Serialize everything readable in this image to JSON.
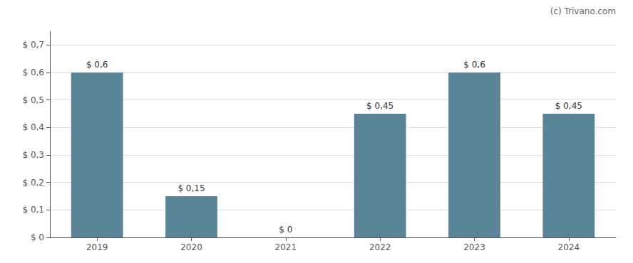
{
  "chart_data": {
    "type": "bar",
    "annotations": [
      "(c) Trivano.com"
    ],
    "categories": [
      "2019",
      "2020",
      "2021",
      "2022",
      "2023",
      "2024"
    ],
    "values": [
      0.6,
      0.15,
      0.0,
      0.45,
      0.6,
      0.45
    ],
    "value_labels": [
      "$ 0,6",
      "$ 0,15",
      "$ 0",
      "$ 0,45",
      "$ 0,6",
      "$ 0,45"
    ],
    "data_labels": true,
    "color": "#5a8599",
    "ylim": [
      0,
      0.75
    ],
    "yticks": [
      {
        "value": 0.0,
        "label": "$ 0"
      },
      {
        "value": 0.1,
        "label": "$ 0,1"
      },
      {
        "value": 0.2,
        "label": "$ 0,2"
      },
      {
        "value": 0.3,
        "label": "$ 0,3"
      },
      {
        "value": 0.4,
        "label": "$ 0,4"
      },
      {
        "value": 0.5,
        "label": "$ 0,5"
      },
      {
        "value": 0.6,
        "label": "$ 0,6"
      },
      {
        "value": 0.7,
        "label": "$ 0,7"
      }
    ],
    "grid": true
  }
}
